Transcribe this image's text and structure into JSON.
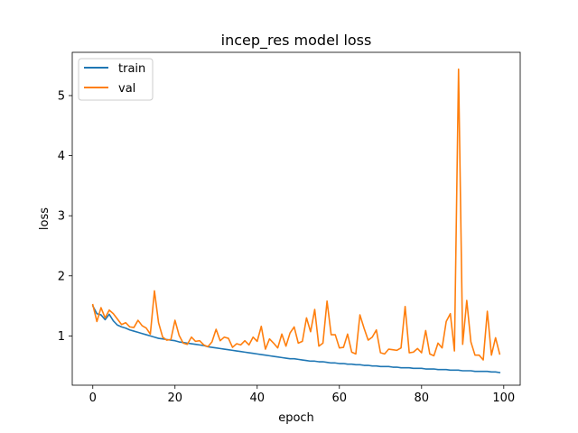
{
  "chart_data": {
    "type": "line",
    "title": "incep_res model loss",
    "xlabel": "epoch",
    "ylabel": "loss",
    "xlim": [
      -5,
      104
    ],
    "ylim": [
      0.18,
      5.72
    ],
    "xticks": [
      0,
      20,
      40,
      60,
      80,
      100
    ],
    "yticks": [
      1,
      2,
      3,
      4,
      5
    ],
    "grid": false,
    "legend_position": "upper-left",
    "series": [
      {
        "name": "train",
        "color": "#1f77b4",
        "x": [
          0,
          1,
          2,
          3,
          4,
          5,
          6,
          7,
          8,
          9,
          10,
          11,
          12,
          13,
          14,
          15,
          16,
          17,
          18,
          19,
          20,
          21,
          22,
          23,
          24,
          25,
          26,
          27,
          28,
          29,
          30,
          31,
          32,
          33,
          34,
          35,
          36,
          37,
          38,
          39,
          40,
          41,
          42,
          43,
          44,
          45,
          46,
          47,
          48,
          49,
          50,
          51,
          52,
          53,
          54,
          55,
          56,
          57,
          58,
          59,
          60,
          61,
          62,
          63,
          64,
          65,
          66,
          67,
          68,
          69,
          70,
          71,
          72,
          73,
          74,
          75,
          76,
          77,
          78,
          79,
          80,
          81,
          82,
          83,
          84,
          85,
          86,
          87,
          88,
          89,
          90,
          91,
          92,
          93,
          94,
          95,
          96,
          97,
          98,
          99
        ],
        "values": [
          1.5,
          1.37,
          1.35,
          1.27,
          1.36,
          1.25,
          1.18,
          1.15,
          1.13,
          1.1,
          1.08,
          1.06,
          1.04,
          1.02,
          1.0,
          0.98,
          0.96,
          0.95,
          0.94,
          0.93,
          0.92,
          0.9,
          0.89,
          0.88,
          0.87,
          0.86,
          0.85,
          0.84,
          0.82,
          0.81,
          0.8,
          0.79,
          0.78,
          0.77,
          0.76,
          0.75,
          0.74,
          0.73,
          0.72,
          0.71,
          0.7,
          0.69,
          0.68,
          0.67,
          0.66,
          0.65,
          0.64,
          0.63,
          0.62,
          0.62,
          0.61,
          0.6,
          0.59,
          0.58,
          0.58,
          0.57,
          0.57,
          0.56,
          0.55,
          0.55,
          0.54,
          0.54,
          0.53,
          0.53,
          0.52,
          0.52,
          0.51,
          0.51,
          0.5,
          0.5,
          0.49,
          0.49,
          0.49,
          0.48,
          0.48,
          0.47,
          0.47,
          0.47,
          0.46,
          0.46,
          0.46,
          0.45,
          0.45,
          0.45,
          0.44,
          0.44,
          0.44,
          0.43,
          0.43,
          0.43,
          0.42,
          0.42,
          0.42,
          0.41,
          0.41,
          0.41,
          0.41,
          0.4,
          0.4,
          0.39
        ]
      },
      {
        "name": "val",
        "color": "#ff7f0e",
        "x": [
          0,
          1,
          2,
          3,
          4,
          5,
          6,
          7,
          8,
          9,
          10,
          11,
          12,
          13,
          14,
          15,
          16,
          17,
          18,
          19,
          20,
          21,
          22,
          23,
          24,
          25,
          26,
          27,
          28,
          29,
          30,
          31,
          32,
          33,
          34,
          35,
          36,
          37,
          38,
          39,
          40,
          41,
          42,
          43,
          44,
          45,
          46,
          47,
          48,
          49,
          50,
          51,
          52,
          53,
          54,
          55,
          56,
          57,
          58,
          59,
          60,
          61,
          62,
          63,
          64,
          65,
          66,
          67,
          68,
          69,
          70,
          71,
          72,
          73,
          74,
          75,
          76,
          77,
          78,
          79,
          80,
          81,
          82,
          83,
          84,
          85,
          86,
          87,
          88,
          89,
          90,
          91,
          92,
          93,
          94,
          95,
          96,
          97,
          98,
          99
        ],
        "values": [
          1.52,
          1.24,
          1.47,
          1.3,
          1.43,
          1.37,
          1.28,
          1.19,
          1.22,
          1.15,
          1.14,
          1.26,
          1.17,
          1.13,
          1.03,
          1.75,
          1.22,
          0.98,
          0.93,
          0.94,
          1.26,
          1.01,
          0.88,
          0.86,
          0.98,
          0.91,
          0.92,
          0.85,
          0.82,
          0.9,
          1.11,
          0.92,
          0.98,
          0.96,
          0.81,
          0.87,
          0.85,
          0.92,
          0.85,
          0.98,
          0.91,
          1.16,
          0.78,
          0.95,
          0.88,
          0.8,
          1.03,
          0.83,
          1.05,
          1.15,
          0.88,
          0.91,
          1.3,
          1.07,
          1.44,
          0.83,
          0.88,
          1.58,
          1.02,
          1.02,
          0.8,
          0.81,
          1.03,
          0.73,
          0.7,
          1.35,
          1.13,
          0.93,
          0.98,
          1.1,
          0.72,
          0.7,
          0.78,
          0.77,
          0.76,
          0.8,
          1.49,
          0.72,
          0.73,
          0.79,
          0.72,
          1.09,
          0.7,
          0.67,
          0.88,
          0.8,
          1.24,
          1.37,
          0.75,
          5.44,
          0.86,
          1.59,
          0.9,
          0.68,
          0.68,
          0.6,
          1.41,
          0.68,
          0.97,
          0.7
        ]
      }
    ]
  }
}
